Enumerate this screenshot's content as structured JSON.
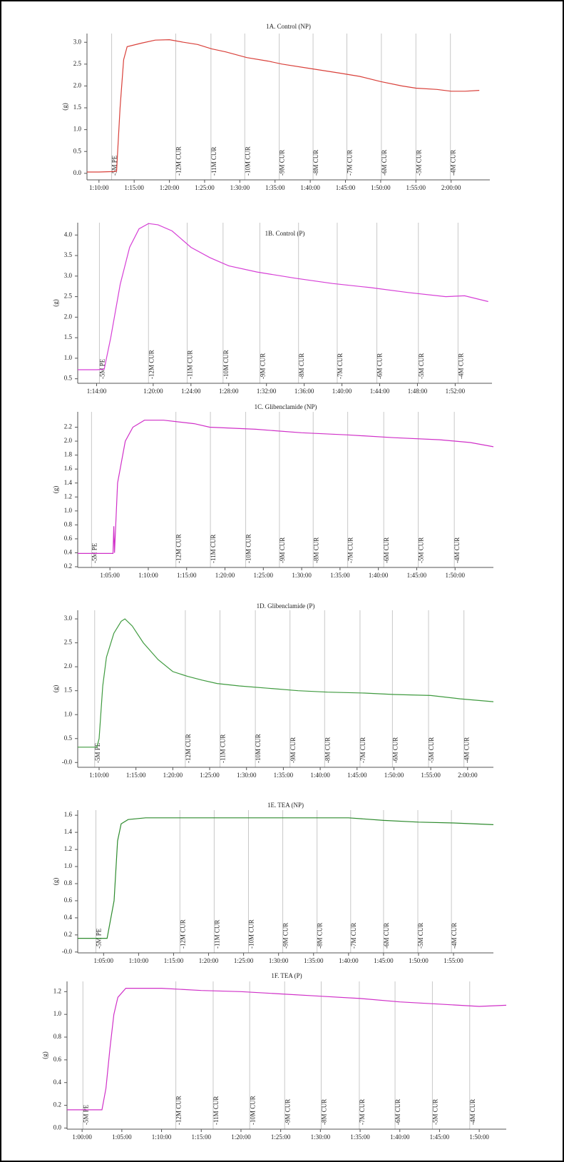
{
  "chart_data": [
    {
      "type": "line",
      "title": "1A. Control (NP)",
      "ylabel": "(g)",
      "color": "#d9403a",
      "xlim": [
        68.3,
        125.5
      ],
      "ylim": [
        -0.15,
        3.2
      ],
      "yticks": [
        {
          "value": 0,
          "label": "0.0"
        },
        0.5,
        {
          "value": 1,
          "label": "1.0"
        },
        1.5,
        {
          "value": 2,
          "label": "2.0"
        },
        2.5,
        {
          "value": 3,
          "label": "3.0"
        }
      ],
      "xticks": [
        {
          "value": 70,
          "label": "1:10:00"
        },
        {
          "value": 75,
          "label": "1:15:00"
        },
        {
          "value": 80,
          "label": "1:20:00"
        },
        {
          "value": 85,
          "label": "1:25:00"
        },
        {
          "value": 90,
          "label": "1:30:00"
        },
        {
          "value": 95,
          "label": "1:35:00"
        },
        {
          "value": 100,
          "label": "1:40:00"
        },
        {
          "value": 105,
          "label": "1:45:00"
        },
        {
          "value": 110,
          "label": "1:50:00"
        },
        {
          "value": 115,
          "label": "1:55:00"
        },
        {
          "value": 120,
          "label": "2:00:00"
        }
      ],
      "annotations": [
        {
          "text": "-5M PE",
          "x": 71.8
        },
        {
          "text": "-12M CUR",
          "x": 80.9
        },
        {
          "text": "-11M CUR",
          "x": 85.9
        },
        {
          "text": "-10M CUR",
          "x": 90.7
        },
        {
          "text": "-9M CUR",
          "x": 95.6
        },
        {
          "text": "-8M CUR",
          "x": 100.4
        },
        {
          "text": "-7M CUR",
          "x": 105.2
        },
        {
          "text": "-6M CUR",
          "x": 110.1
        },
        {
          "text": "-5M CUR",
          "x": 115
        },
        {
          "text": "-4M CUR",
          "x": 119.9
        }
      ],
      "x": [
        68.3,
        70,
        72,
        72.5,
        73,
        73.5,
        74,
        76,
        78,
        80,
        82,
        84,
        86,
        88,
        91,
        94,
        96,
        100,
        104,
        107,
        110,
        113,
        115,
        118,
        120,
        122,
        124
      ],
      "values": [
        0.03,
        0.03,
        0.04,
        0.05,
        1.5,
        2.6,
        2.9,
        2.98,
        3.05,
        3.06,
        3.0,
        2.95,
        2.85,
        2.78,
        2.65,
        2.57,
        2.5,
        2.4,
        2.3,
        2.22,
        2.1,
        2.0,
        1.95,
        1.92,
        1.88,
        1.88,
        1.9
      ]
    },
    {
      "type": "line",
      "title": "1B. Control (P)",
      "ylabel": "(g)",
      "color": "#d63fd6",
      "xlim": [
        72,
        115.9
      ],
      "ylim": [
        0.39,
        4.3
      ],
      "yticks": [
        0.5,
        {
          "value": 1,
          "label": "1.0"
        },
        1.5,
        {
          "value": 2,
          "label": "2.0"
        },
        2.5,
        {
          "value": 3,
          "label": "3.0"
        },
        3.5,
        {
          "value": 4,
          "label": "4.0"
        }
      ],
      "xticks": [
        {
          "value": 74,
          "label": "1:14:00"
        },
        {
          "value": 80,
          "label": "1:20:00"
        },
        {
          "value": 84,
          "label": "1:24:00"
        },
        {
          "value": 88,
          "label": "1:28:00"
        },
        {
          "value": 92,
          "label": "1:32:00"
        },
        {
          "value": 96,
          "label": "1:36:00"
        },
        {
          "value": 100,
          "label": "1:40:00"
        },
        {
          "value": 104,
          "label": "1:44:00"
        },
        {
          "value": 108,
          "label": "1:48:00"
        },
        {
          "value": 112,
          "label": "1:52:00"
        }
      ],
      "annotations": [
        {
          "text": "-5M PE",
          "x": 74.3
        },
        {
          "text": "-12M CUR",
          "x": 79.5
        },
        {
          "text": "-11M CUR",
          "x": 83.6
        },
        {
          "text": "-10M CUR",
          "x": 87.4
        },
        {
          "text": "-9M CUR",
          "x": 91.3
        },
        {
          "text": "-8M CUR",
          "x": 95.4
        },
        {
          "text": "-7M CUR",
          "x": 99.5
        },
        {
          "text": "-6M CUR",
          "x": 103.7
        },
        {
          "text": "-5M CUR",
          "x": 108.1
        },
        {
          "text": "-4M CUR",
          "x": 112.3
        }
      ],
      "x": [
        72,
        74,
        74.8,
        75.5,
        76.5,
        77.5,
        78.5,
        79.5,
        80.5,
        82,
        84,
        86,
        88,
        91,
        95,
        99,
        103,
        107,
        111,
        113,
        115.5
      ],
      "values": [
        0.72,
        0.72,
        0.73,
        1.5,
        2.8,
        3.7,
        4.15,
        4.28,
        4.25,
        4.1,
        3.7,
        3.45,
        3.25,
        3.1,
        2.95,
        2.82,
        2.72,
        2.6,
        2.5,
        2.52,
        2.38
      ]
    },
    {
      "type": "line",
      "title": "1C. Glibenclamide (NP)",
      "ylabel": "(g)",
      "color": "#d030c8",
      "xlim": [
        60.8,
        115
      ],
      "ylim": [
        0.19,
        2.42
      ],
      "yticks": [
        0.2,
        0.4,
        0.6,
        0.8,
        {
          "value": 1,
          "label": "1.0"
        },
        1.2,
        1.4,
        1.6,
        1.8,
        {
          "value": 2,
          "label": "2.0"
        },
        2.2
      ],
      "xticks": [
        {
          "value": 65,
          "label": "1:05:00"
        },
        {
          "value": 70,
          "label": "1:10:00"
        },
        {
          "value": 75,
          "label": "1:15:00"
        },
        {
          "value": 80,
          "label": "1:20:00"
        },
        {
          "value": 85,
          "label": "1:25:00"
        },
        {
          "value": 90,
          "label": "1:30:00"
        },
        {
          "value": 95,
          "label": "1:35:00"
        },
        {
          "value": 100,
          "label": "1:40:00"
        },
        {
          "value": 105,
          "label": "1:45:00"
        },
        {
          "value": 110,
          "label": "1:50:00"
        }
      ],
      "annotations": [
        {
          "text": "-5M PE",
          "x": 62.6
        },
        {
          "text": "-12M CUR",
          "x": 73.6
        },
        {
          "text": "-11M CUR",
          "x": 78.1
        },
        {
          "text": "-10M CUR",
          "x": 82.7
        },
        {
          "text": "-9M CUR",
          "x": 87.1
        },
        {
          "text": "-8M CUR",
          "x": 91.5
        },
        {
          "text": "-7M CUR",
          "x": 96
        },
        {
          "text": "-6M CUR",
          "x": 100.7
        },
        {
          "text": "-5M CUR",
          "x": 105.2
        },
        {
          "text": "-4M CUR",
          "x": 109.9
        }
      ],
      "x": [
        60.8,
        65.4,
        65.5,
        65.6,
        66,
        67,
        68,
        69.5,
        72,
        76,
        78,
        84,
        90,
        96,
        102,
        108,
        112,
        115
      ],
      "values": [
        0.39,
        0.39,
        0.78,
        0.4,
        1.4,
        2.0,
        2.2,
        2.3,
        2.3,
        2.25,
        2.2,
        2.17,
        2.12,
        2.09,
        2.05,
        2.02,
        1.98,
        1.92
      ]
    },
    {
      "type": "line",
      "title": "1D. Glibenclamide (P)",
      "ylabel": "(g)",
      "color": "#3f9a3f",
      "xlim": [
        67.1,
        123.5
      ],
      "ylim": [
        -0.1,
        3.18
      ],
      "yticks": [
        {
          "value": 0,
          "label": "-0.0"
        },
        0.5,
        {
          "value": 1,
          "label": "1.0"
        },
        1.5,
        {
          "value": 2,
          "label": "2.0"
        },
        2.5,
        {
          "value": 3,
          "label": "3.0"
        }
      ],
      "xticks": [
        {
          "value": 70,
          "label": "1:10:00"
        },
        {
          "value": 75,
          "label": "1:15:00"
        },
        {
          "value": 80,
          "label": "1:20:00"
        },
        {
          "value": 85,
          "label": "1:25:00"
        },
        {
          "value": 90,
          "label": "1:30:00"
        },
        {
          "value": 95,
          "label": "1:35:00"
        },
        {
          "value": 100,
          "label": "1:40:00"
        },
        {
          "value": 105,
          "label": "1:45:00"
        },
        {
          "value": 110,
          "label": "1:50:00"
        },
        {
          "value": 115,
          "label": "1:55:00"
        },
        {
          "value": 120,
          "label": "2:00:00"
        }
      ],
      "annotations": [
        {
          "text": "-5M PE",
          "x": 69.4
        },
        {
          "text": "-12M CUR",
          "x": 81.7
        },
        {
          "text": "-11M CUR",
          "x": 86.4
        },
        {
          "text": "-10M CUR",
          "x": 91.2
        },
        {
          "text": "-9M CUR",
          "x": 95.9
        },
        {
          "text": "-8M CUR",
          "x": 100.6
        },
        {
          "text": "-7M CUR",
          "x": 105.4
        },
        {
          "text": "-6M CUR",
          "x": 109.8
        },
        {
          "text": "-5M CUR",
          "x": 114.7
        },
        {
          "text": "-4M CUR",
          "x": 119.5
        }
      ],
      "x": [
        67.1,
        69.7,
        70,
        70.5,
        71,
        72,
        73,
        73.5,
        74.5,
        76,
        78,
        80,
        82,
        84,
        86,
        89,
        93,
        97,
        101,
        106,
        110,
        115,
        119,
        123.5
      ],
      "values": [
        0.32,
        0.32,
        0.5,
        1.6,
        2.2,
        2.7,
        2.95,
        3.0,
        2.85,
        2.5,
        2.15,
        1.9,
        1.8,
        1.72,
        1.65,
        1.6,
        1.55,
        1.5,
        1.47,
        1.45,
        1.42,
        1.4,
        1.33,
        1.27
      ]
    },
    {
      "type": "line",
      "title": "1E. TEA (NP)",
      "ylabel": "(g)",
      "color": "#2e8b2e",
      "xlim": [
        61.3,
        120.7
      ],
      "ylim": [
        -0.01,
        1.66
      ],
      "yticks": [
        {
          "value": 0,
          "label": "-0.0"
        },
        0.2,
        0.4,
        0.6,
        0.8,
        {
          "value": 1,
          "label": "1.0"
        },
        1.2,
        1.4,
        1.6
      ],
      "xticks": [
        {
          "value": 65,
          "label": "1:05:00"
        },
        {
          "value": 70,
          "label": "1:10:00"
        },
        {
          "value": 75,
          "label": "1:15:00"
        },
        {
          "value": 80,
          "label": "1:20:00"
        },
        {
          "value": 85,
          "label": "1:25:00"
        },
        {
          "value": 90,
          "label": "1:30:00"
        },
        {
          "value": 95,
          "label": "1:35:00"
        },
        {
          "value": 100,
          "label": "1:40:00"
        },
        {
          "value": 105,
          "label": "1:45:00"
        },
        {
          "value": 110,
          "label": "1:50:00"
        },
        {
          "value": 115,
          "label": "1:55:00"
        }
      ],
      "annotations": [
        {
          "text": "-5M PE",
          "x": 63.9
        },
        {
          "text": "-12M CUR",
          "x": 75.9
        },
        {
          "text": "-11M CUR",
          "x": 80.8
        },
        {
          "text": "-10M CUR",
          "x": 85.7
        },
        {
          "text": "-9M CUR",
          "x": 90.6
        },
        {
          "text": "-8M CUR",
          "x": 95.5
        },
        {
          "text": "-7M CUR",
          "x": 100.3
        },
        {
          "text": "-6M CUR",
          "x": 105
        },
        {
          "text": "-5M CUR",
          "x": 109.9
        },
        {
          "text": "-4M CUR",
          "x": 114.7
        }
      ],
      "x": [
        61.3,
        65.5,
        66.5,
        67,
        67.5,
        68.5,
        71,
        80,
        90,
        100,
        105,
        110,
        115,
        120.7
      ],
      "values": [
        0.16,
        0.16,
        0.6,
        1.3,
        1.5,
        1.55,
        1.57,
        1.57,
        1.57,
        1.57,
        1.54,
        1.52,
        1.51,
        1.49
      ]
    },
    {
      "type": "line",
      "title": "1F. TEA (P)",
      "ylabel": "(g)",
      "color": "#d030c8",
      "xlim": [
        58.1,
        113.4
      ],
      "ylim": [
        -0.01,
        1.29
      ],
      "yticks": [
        {
          "value": 0,
          "label": "0.0"
        },
        0.2,
        0.4,
        0.6,
        0.8,
        {
          "value": 1,
          "label": "1.0"
        },
        1.2
      ],
      "xticks": [
        {
          "value": 60,
          "label": "1:00:00"
        },
        {
          "value": 65,
          "label": "1:05:00"
        },
        {
          "value": 70,
          "label": "1:10:00"
        },
        {
          "value": 75,
          "label": "1:15:00"
        },
        {
          "value": 80,
          "label": "1:20:00"
        },
        {
          "value": 85,
          "label": "1:25:00"
        },
        {
          "value": 90,
          "label": "1:30:00"
        },
        {
          "value": 95,
          "label": "1:35:00"
        },
        {
          "value": 100,
          "label": "1:40:00"
        },
        {
          "value": 105,
          "label": "1:45:00"
        },
        {
          "value": 110,
          "label": "1:50:00"
        }
      ],
      "annotations": [
        {
          "text": "-5M PE",
          "x": 60.1
        },
        {
          "text": "-12M CUR",
          "x": 71.8
        },
        {
          "text": "-11M CUR",
          "x": 76.5
        },
        {
          "text": "-10M CUR",
          "x": 81.1
        },
        {
          "text": "-9M CUR",
          "x": 85.5
        },
        {
          "text": "-8M CUR",
          "x": 90.1
        },
        {
          "text": "-7M CUR",
          "x": 94.9
        },
        {
          "text": "-6M CUR",
          "x": 99.4
        },
        {
          "text": "-5M CUR",
          "x": 104.1
        },
        {
          "text": "-4M CUR",
          "x": 108.8
        }
      ],
      "x": [
        58.1,
        62.5,
        63,
        63.5,
        64,
        64.5,
        65.5,
        70,
        75,
        80,
        85,
        90,
        95,
        100,
        105,
        110,
        113.4
      ],
      "values": [
        0.16,
        0.16,
        0.35,
        0.7,
        1.0,
        1.15,
        1.23,
        1.23,
        1.21,
        1.2,
        1.18,
        1.16,
        1.14,
        1.11,
        1.09,
        1.07,
        1.08
      ]
    }
  ]
}
